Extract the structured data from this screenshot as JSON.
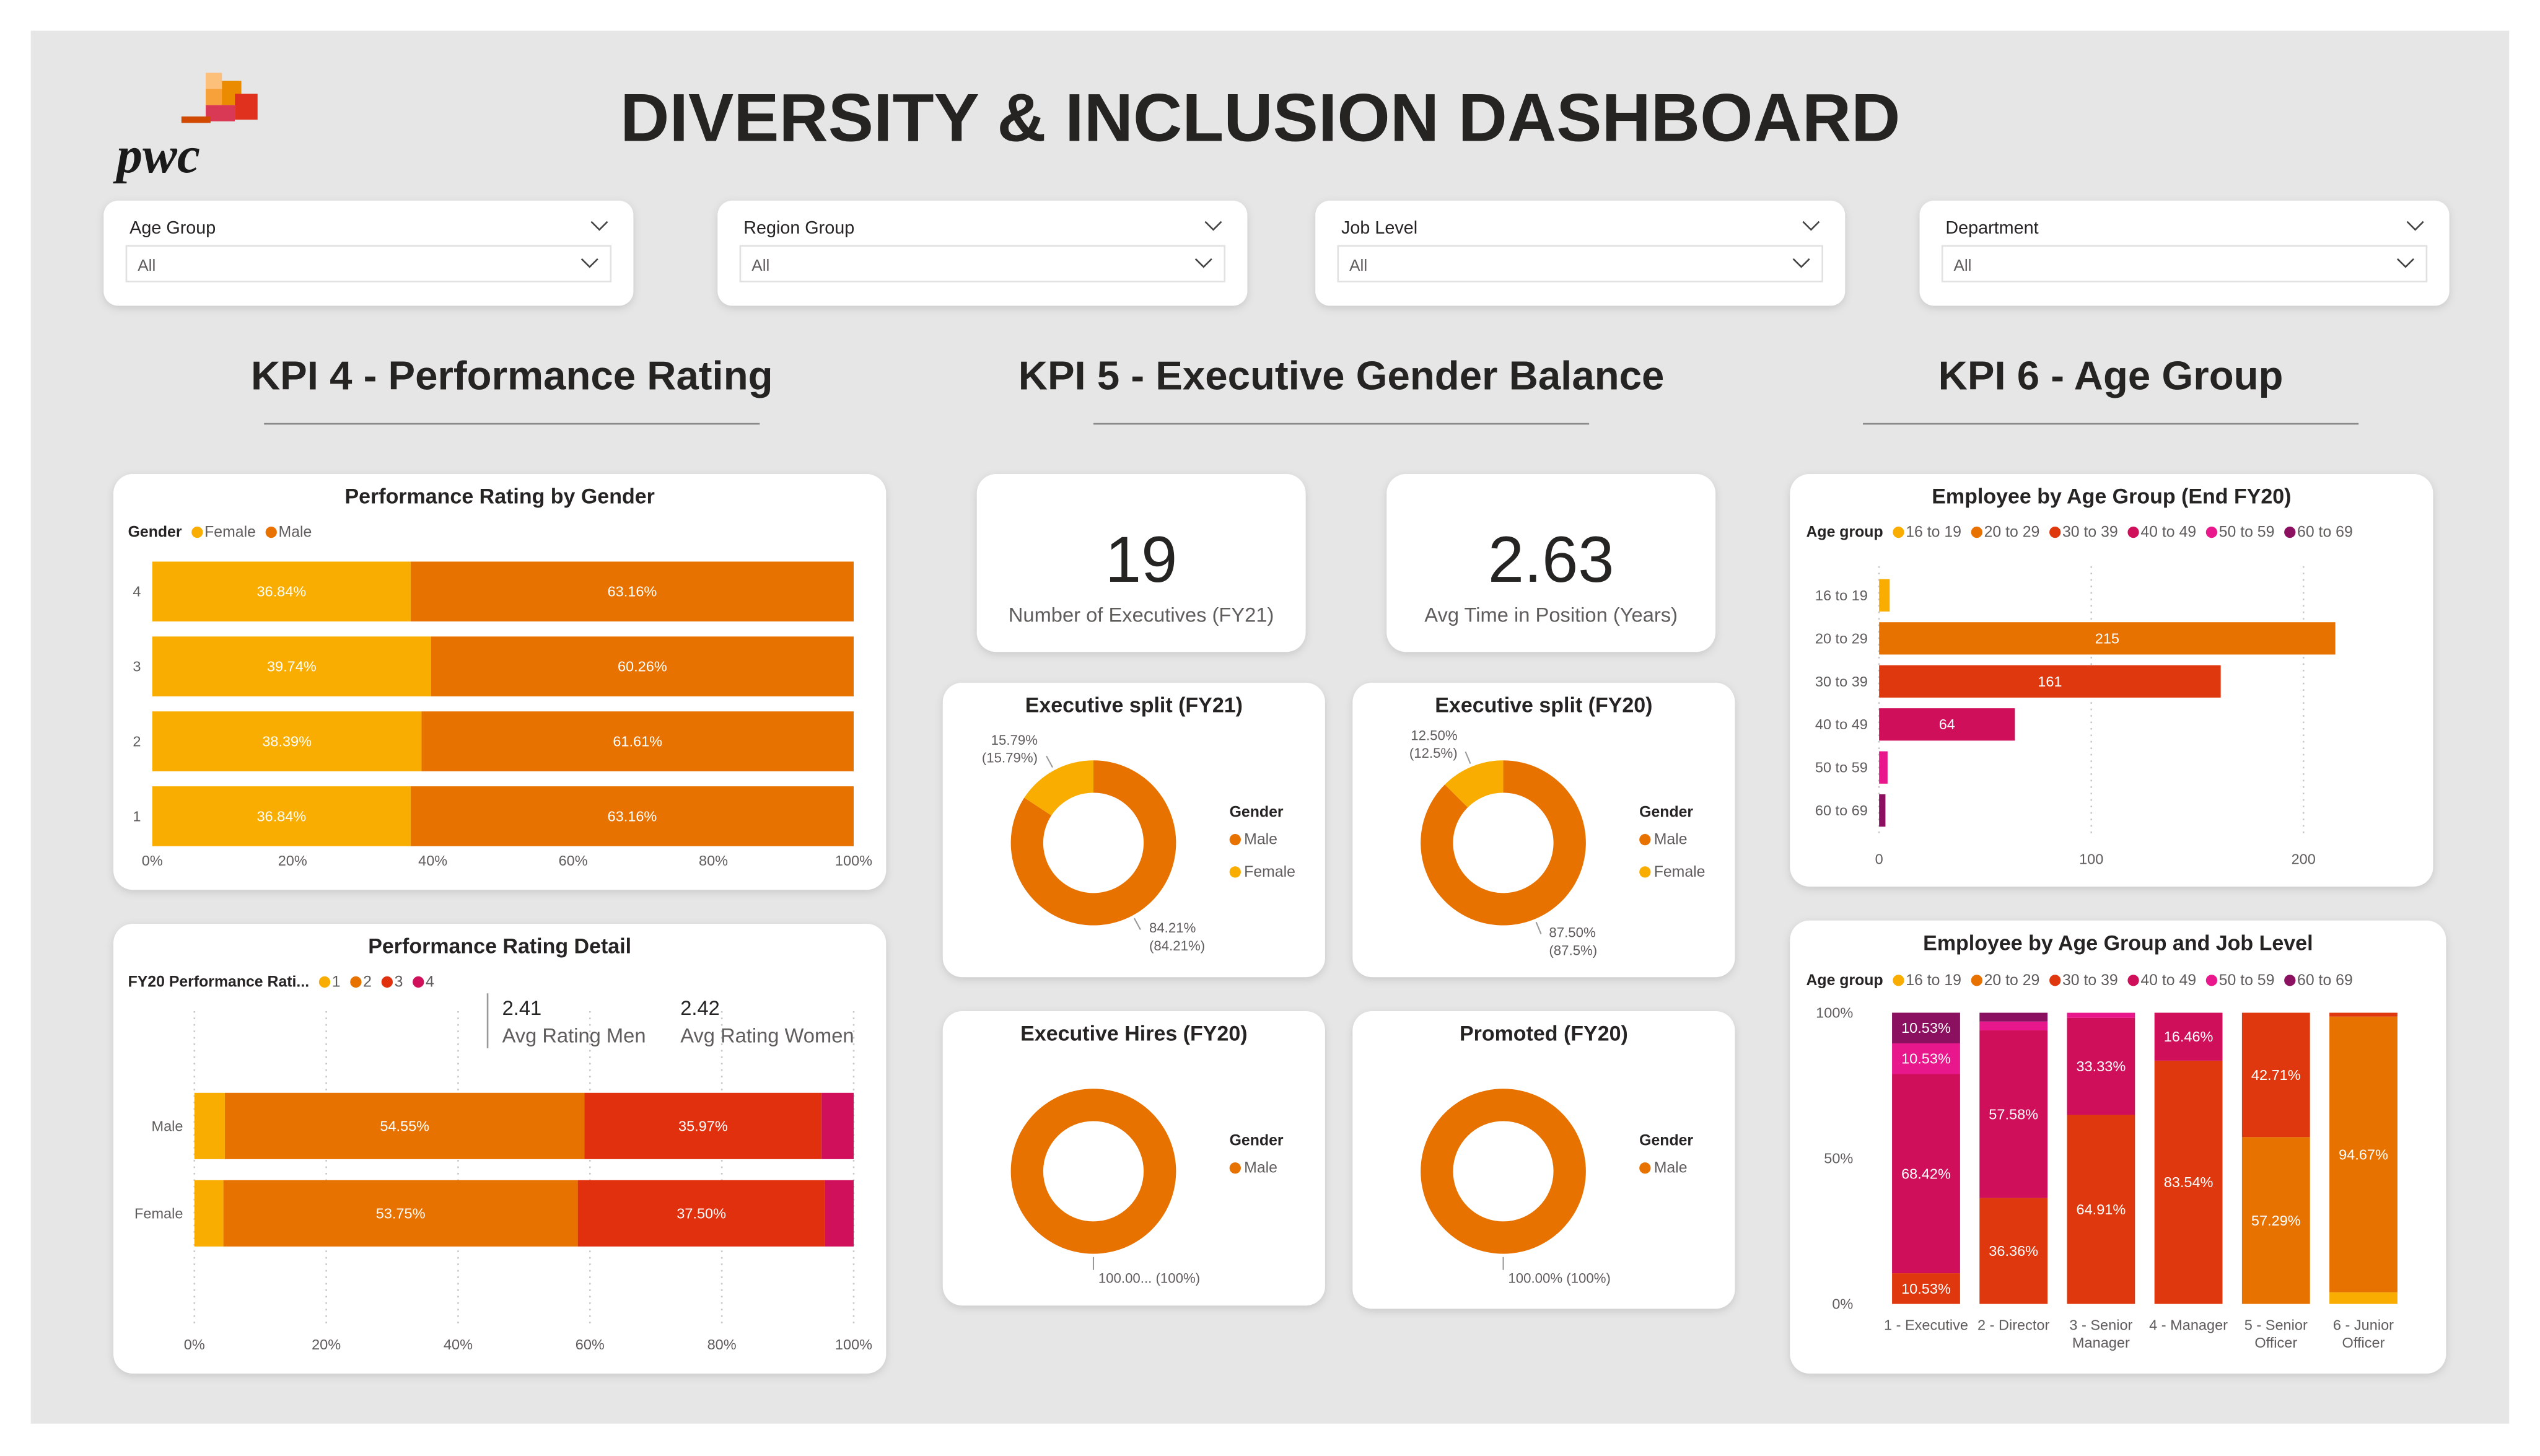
{
  "header": {
    "title": "DIVERSITY & INCLUSION DASHBOARD",
    "logo": "pwc"
  },
  "filters": [
    {
      "label": "Age Group",
      "value": "All"
    },
    {
      "label": "Region Group",
      "value": "All"
    },
    {
      "label": "Job Level",
      "value": "All"
    },
    {
      "label": "Department",
      "value": "All"
    }
  ],
  "sections": [
    "KPI 4 - Performance Rating",
    "KPI 5 - Executive Gender Balance",
    "KPI 6 - Age Group"
  ],
  "cards": [
    {
      "value": 19,
      "label": "Number of Executives (FY21)"
    },
    {
      "value": 2.63,
      "label": "Avg Time in Position (Years)"
    }
  ],
  "chart_data": [
    {
      "type": "bar",
      "title": "Performance Rating by Gender",
      "legend_title": "Gender",
      "categories": [
        "4",
        "3",
        "2",
        "1"
      ],
      "series": [
        {
          "name": "Female",
          "color": "#f8ad00",
          "values": [
            36.84,
            39.74,
            38.39,
            36.84
          ],
          "value_labels": [
            "36.84%",
            "39.74%",
            "38.39%",
            "36.84%"
          ]
        },
        {
          "name": "Male",
          "color": "#e87200",
          "values": [
            63.16,
            60.26,
            61.61,
            63.16
          ],
          "value_labels": [
            "63.16%",
            "60.26%",
            "61.61%",
            "63.16%"
          ]
        }
      ],
      "xlim": [
        0,
        100
      ],
      "xticks": [
        {
          "value": 0,
          "label": "0%"
        },
        {
          "value": 20,
          "label": "20%"
        },
        {
          "value": 40,
          "label": "40%"
        },
        {
          "value": 60,
          "label": "60%"
        },
        {
          "value": 80,
          "label": "80%"
        },
        {
          "value": 100,
          "label": "100%"
        }
      ],
      "grid": false
    },
    {
      "type": "bar",
      "title": "Performance Rating Detail",
      "legend_title": "FY20 Performance Rati...",
      "categories": [
        "Male",
        "Female"
      ],
      "series": [
        {
          "name": "1",
          "color": "#f8ad00",
          "values": [
            4.62,
            4.4
          ],
          "value_labels": [
            null,
            null
          ]
        },
        {
          "name": "2",
          "color": "#e87200",
          "values": [
            54.55,
            53.75
          ],
          "value_labels": [
            "54.55%",
            "53.75%"
          ]
        },
        {
          "name": "3",
          "color": "#e0300e",
          "values": [
            35.97,
            37.5
          ],
          "value_labels": [
            "35.97%",
            "37.50%"
          ]
        },
        {
          "name": "4",
          "color": "#d0105a",
          "values": [
            4.86,
            4.35
          ],
          "value_labels": [
            null,
            null
          ]
        }
      ],
      "annotations": [
        {
          "value": 2.41,
          "label": "Avg Rating Men"
        },
        {
          "value": 2.42,
          "label": "Avg Rating Women"
        }
      ],
      "xlim": [
        0,
        100
      ],
      "xticks": [
        {
          "value": 0,
          "label": "0%"
        },
        {
          "value": 20,
          "label": "20%"
        },
        {
          "value": 40,
          "label": "40%"
        },
        {
          "value": 60,
          "label": "60%"
        },
        {
          "value": 80,
          "label": "80%"
        },
        {
          "value": 100,
          "label": "100%"
        }
      ],
      "grid": true
    },
    {
      "type": "donut",
      "title": "Executive split (FY21)",
      "legend_title": "Gender",
      "categories": [
        "Male",
        "Female"
      ],
      "colors": [
        "#e87200",
        "#f8ad00"
      ],
      "values": [
        84.21,
        15.79
      ],
      "value_labels": [
        [
          "84.21%",
          "(84.21%)"
        ],
        [
          "15.79%",
          "(15.79%)"
        ]
      ]
    },
    {
      "type": "donut",
      "title": "Executive split (FY20)",
      "legend_title": "Gender",
      "categories": [
        "Male",
        "Female"
      ],
      "colors": [
        "#e87200",
        "#f8ad00"
      ],
      "values": [
        87.5,
        12.5
      ],
      "value_labels": [
        [
          "87.50%",
          "(87.5%)"
        ],
        [
          "12.50%",
          "(12.5%)"
        ]
      ]
    },
    {
      "type": "donut",
      "title": "Executive Hires (FY20)",
      "legend_title": "Gender",
      "categories": [
        "Male"
      ],
      "colors": [
        "#e87200"
      ],
      "values": [
        100
      ],
      "value_labels": [
        [
          "100.00... (100%)"
        ]
      ]
    },
    {
      "type": "donut",
      "title": "Promoted (FY20)",
      "legend_title": "Gender",
      "categories": [
        "Male"
      ],
      "colors": [
        "#e87200"
      ],
      "values": [
        100
      ],
      "value_labels": [
        [
          "100.00% (100%)"
        ]
      ]
    },
    {
      "type": "bar",
      "title": "Employee by Age Group (End FY20)",
      "legend_title": "Age group",
      "categories": [
        "16 to 19",
        "20 to 29",
        "30 to 39",
        "40 to 49",
        "50 to 59",
        "60 to 69"
      ],
      "colors": [
        "#f8ad00",
        "#e87200",
        "#e0380e",
        "#cf0f5a",
        "#e8178c",
        "#8b1060"
      ],
      "values": [
        5,
        215,
        161,
        64,
        4,
        3
      ],
      "xlim": [
        0,
        250
      ],
      "xticks": [
        0,
        100,
        200
      ],
      "grid": true
    },
    {
      "type": "column",
      "title": "Employee by Age Group and Job Level",
      "legend_title": "Age group",
      "categories": [
        "1 - Executive",
        "2 - Director",
        "3 - Senior Manager",
        "4 - Manager",
        "5 - Senior Officer",
        "6 - Junior Officer"
      ],
      "series": [
        {
          "name": "16 to 19",
          "color": "#f8ad00",
          "values": [
            0,
            0,
            0,
            0,
            0,
            4.0
          ],
          "value_labels": [
            null,
            null,
            null,
            null,
            null,
            null
          ]
        },
        {
          "name": "20 to 29",
          "color": "#e87200",
          "values": [
            0,
            0,
            0,
            0,
            57.29,
            94.67
          ],
          "value_labels": [
            null,
            null,
            null,
            null,
            "57.29%",
            "94.67%"
          ]
        },
        {
          "name": "30 to 39",
          "color": "#e0380e",
          "values": [
            10.53,
            36.36,
            64.91,
            83.54,
            42.71,
            1.33
          ],
          "value_labels": [
            "10.53%",
            "36.36%",
            "64.91%",
            "83.54%",
            "42.71%",
            null
          ]
        },
        {
          "name": "40 to 49",
          "color": "#cf0f5a",
          "values": [
            68.42,
            57.58,
            33.33,
            16.46,
            0,
            0
          ],
          "value_labels": [
            "68.42%",
            "57.58%",
            "33.33%",
            "16.46%",
            null,
            null
          ]
        },
        {
          "name": "50 to 59",
          "color": "#e8178c",
          "values": [
            10.53,
            3.03,
            1.75,
            0,
            0,
            0
          ],
          "value_labels": [
            "10.53%",
            null,
            null,
            null,
            null,
            null
          ]
        },
        {
          "name": "60 to 69",
          "color": "#8b1060",
          "values": [
            10.53,
            3.03,
            0,
            0,
            0,
            0
          ],
          "value_labels": [
            "10.53%",
            null,
            null,
            null,
            null,
            null
          ]
        }
      ],
      "ylim": [
        0,
        100
      ],
      "yticks": [
        {
          "value": 0,
          "label": "0%"
        },
        {
          "value": 50,
          "label": "50%"
        },
        {
          "value": 100,
          "label": "100%"
        }
      ],
      "grid": false
    }
  ]
}
